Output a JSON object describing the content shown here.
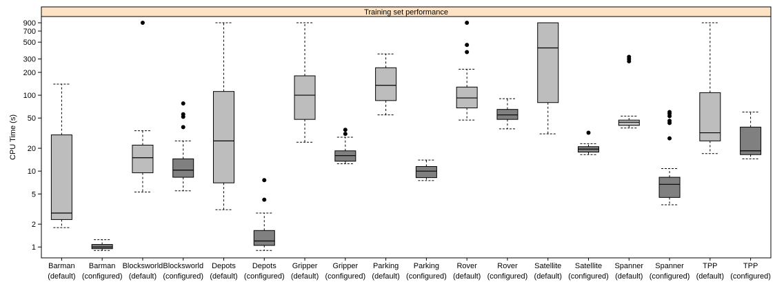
{
  "chart_data": {
    "type": "boxplot",
    "title": "Training set performance",
    "ylabel": "CPU Time (s)",
    "yscale": "log",
    "ylim": [
      0.75,
      1000
    ],
    "yticks": [
      1,
      2,
      5,
      10,
      20,
      50,
      100,
      200,
      300,
      500,
      700,
      900
    ],
    "ytick_labels": [
      "1",
      "2",
      "5",
      "10",
      "20",
      "50",
      "100",
      "200",
      "300",
      "500",
      "700",
      "900"
    ],
    "grid": false,
    "colors": {
      "default": "#bdbdbd",
      "configured": "#808080",
      "strip": "#fde3c4"
    },
    "boxes": [
      {
        "category": [
          "Barman",
          "(default)"
        ],
        "group": "default",
        "whisker_low": 1.8,
        "q1": 2.3,
        "median": 2.8,
        "q3": 30,
        "whisker_high": 140,
        "outliers": []
      },
      {
        "category": [
          "Barman",
          "(configured)"
        ],
        "group": "configured",
        "whisker_low": 0.9,
        "q1": 0.95,
        "median": 1.0,
        "q3": 1.08,
        "whisker_high": 1.25,
        "outliers": []
      },
      {
        "category": [
          "Blocksworld",
          "(default)"
        ],
        "group": "default",
        "whisker_low": 5.3,
        "q1": 9.5,
        "median": 15,
        "q3": 22,
        "whisker_high": 34,
        "outliers": [
          900
        ]
      },
      {
        "category": [
          "Blocksworld",
          "(configured)"
        ],
        "group": "configured",
        "whisker_low": 5.5,
        "q1": 8.3,
        "median": 10.3,
        "q3": 14.5,
        "whisker_high": 25,
        "outliers": [
          38,
          52,
          56,
          78
        ]
      },
      {
        "category": [
          "Depots",
          "(default)"
        ],
        "group": "default",
        "whisker_low": 3.1,
        "q1": 7.0,
        "median": 25,
        "q3": 112,
        "whisker_high": 900,
        "outliers": []
      },
      {
        "category": [
          "Depots",
          "(configured)"
        ],
        "group": "configured",
        "whisker_low": 0.9,
        "q1": 1.05,
        "median": 1.2,
        "q3": 1.65,
        "whisker_high": 2.8,
        "outliers": [
          4.2,
          7.6
        ]
      },
      {
        "category": [
          "Gripper",
          "(default)"
        ],
        "group": "default",
        "whisker_low": 24,
        "q1": 48,
        "median": 100,
        "q3": 180,
        "whisker_high": 900,
        "outliers": []
      },
      {
        "category": [
          "Gripper",
          "(configured)"
        ],
        "group": "configured",
        "whisker_low": 12.5,
        "q1": 13.5,
        "median": 16,
        "q3": 18.5,
        "whisker_high": 28,
        "outliers": [
          31,
          35
        ]
      },
      {
        "category": [
          "Parking",
          "(default)"
        ],
        "group": "default",
        "whisker_low": 55,
        "q1": 85,
        "median": 135,
        "q3": 230,
        "whisker_high": 350,
        "outliers": []
      },
      {
        "category": [
          "Parking",
          "(configured)"
        ],
        "group": "configured",
        "whisker_low": 7.5,
        "q1": 8.2,
        "median": 10,
        "q3": 11.5,
        "whisker_high": 14,
        "outliers": []
      },
      {
        "category": [
          "Rover",
          "(default)"
        ],
        "group": "default",
        "whisker_low": 47,
        "q1": 68,
        "median": 92,
        "q3": 128,
        "whisker_high": 220,
        "outliers": [
          370,
          460,
          900
        ]
      },
      {
        "category": [
          "Rover",
          "(configured)"
        ],
        "group": "configured",
        "whisker_low": 36,
        "q1": 48,
        "median": 55,
        "q3": 65,
        "whisker_high": 90,
        "outliers": []
      },
      {
        "category": [
          "Satellite",
          "(default)"
        ],
        "group": "default",
        "whisker_low": 31,
        "q1": 80,
        "median": 420,
        "q3": 900,
        "whisker_high": 900,
        "outliers": []
      },
      {
        "category": [
          "Satellite",
          "(configured)"
        ],
        "group": "configured",
        "whisker_low": 16.5,
        "q1": 17.8,
        "median": 19.5,
        "q3": 21,
        "whisker_high": 23,
        "outliers": [
          32
        ]
      },
      {
        "category": [
          "Spanner",
          "(default)"
        ],
        "group": "default",
        "whisker_low": 37,
        "q1": 40,
        "median": 44,
        "q3": 47,
        "whisker_high": 53,
        "outliers": [
          280,
          300,
          320
        ]
      },
      {
        "category": [
          "Spanner",
          "(configured)"
        ],
        "group": "configured",
        "whisker_low": 3.6,
        "q1": 4.5,
        "median": 6.7,
        "q3": 8.3,
        "whisker_high": 10.8,
        "outliers": [
          27,
          43,
          46,
          53,
          57,
          60
        ]
      },
      {
        "category": [
          "TPP",
          "(default)"
        ],
        "group": "default",
        "whisker_low": 17,
        "q1": 25,
        "median": 32,
        "q3": 108,
        "whisker_high": 900,
        "outliers": []
      },
      {
        "category": [
          "TPP",
          "(configured)"
        ],
        "group": "configured",
        "whisker_low": 14.5,
        "q1": 16.5,
        "median": 18.5,
        "q3": 38,
        "whisker_high": 60,
        "outliers": []
      }
    ]
  }
}
